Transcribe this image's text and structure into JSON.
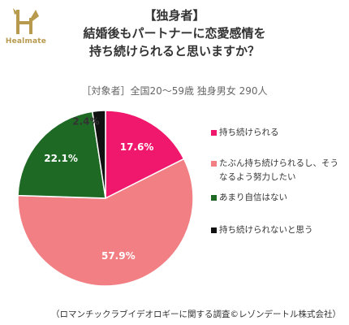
{
  "brand": {
    "name": "Healmate",
    "colors": {
      "logo": "#b89a4e"
    }
  },
  "chart_data": {
    "type": "pie",
    "title": "【独身者】",
    "title_lines": [
      "結婚後もパートナーに恋愛感情を",
      "持ち続けられると思いますか？"
    ],
    "subtitle": "［対象者］全国20〜59歳 独身男女 290人",
    "slices": [
      {
        "label": "持ち続けられる",
        "value": 17.6,
        "display": "17.6%",
        "color": "#f0186d",
        "label_color": "#ffffff"
      },
      {
        "label": "たぶん持ち続けられるし、そうなるよう努力したい",
        "value": 57.9,
        "display": "57.9%",
        "color": "#f17f84",
        "label_color": "#ffffff"
      },
      {
        "label": "あまり自信はない",
        "value": 22.1,
        "display": "22.1%",
        "color": "#1e6a25",
        "label_color": "#ffffff"
      },
      {
        "label": "持ち続けられないと思う",
        "value": 2.4,
        "display": "2.4%",
        "color": "#111111",
        "label_color": "#333333"
      }
    ],
    "legend_position": "right",
    "start": "top",
    "direction": "clockwise"
  },
  "source": "（ロマンチックラブイデオロギーに関する調査©レゾンデートル株式会社）"
}
